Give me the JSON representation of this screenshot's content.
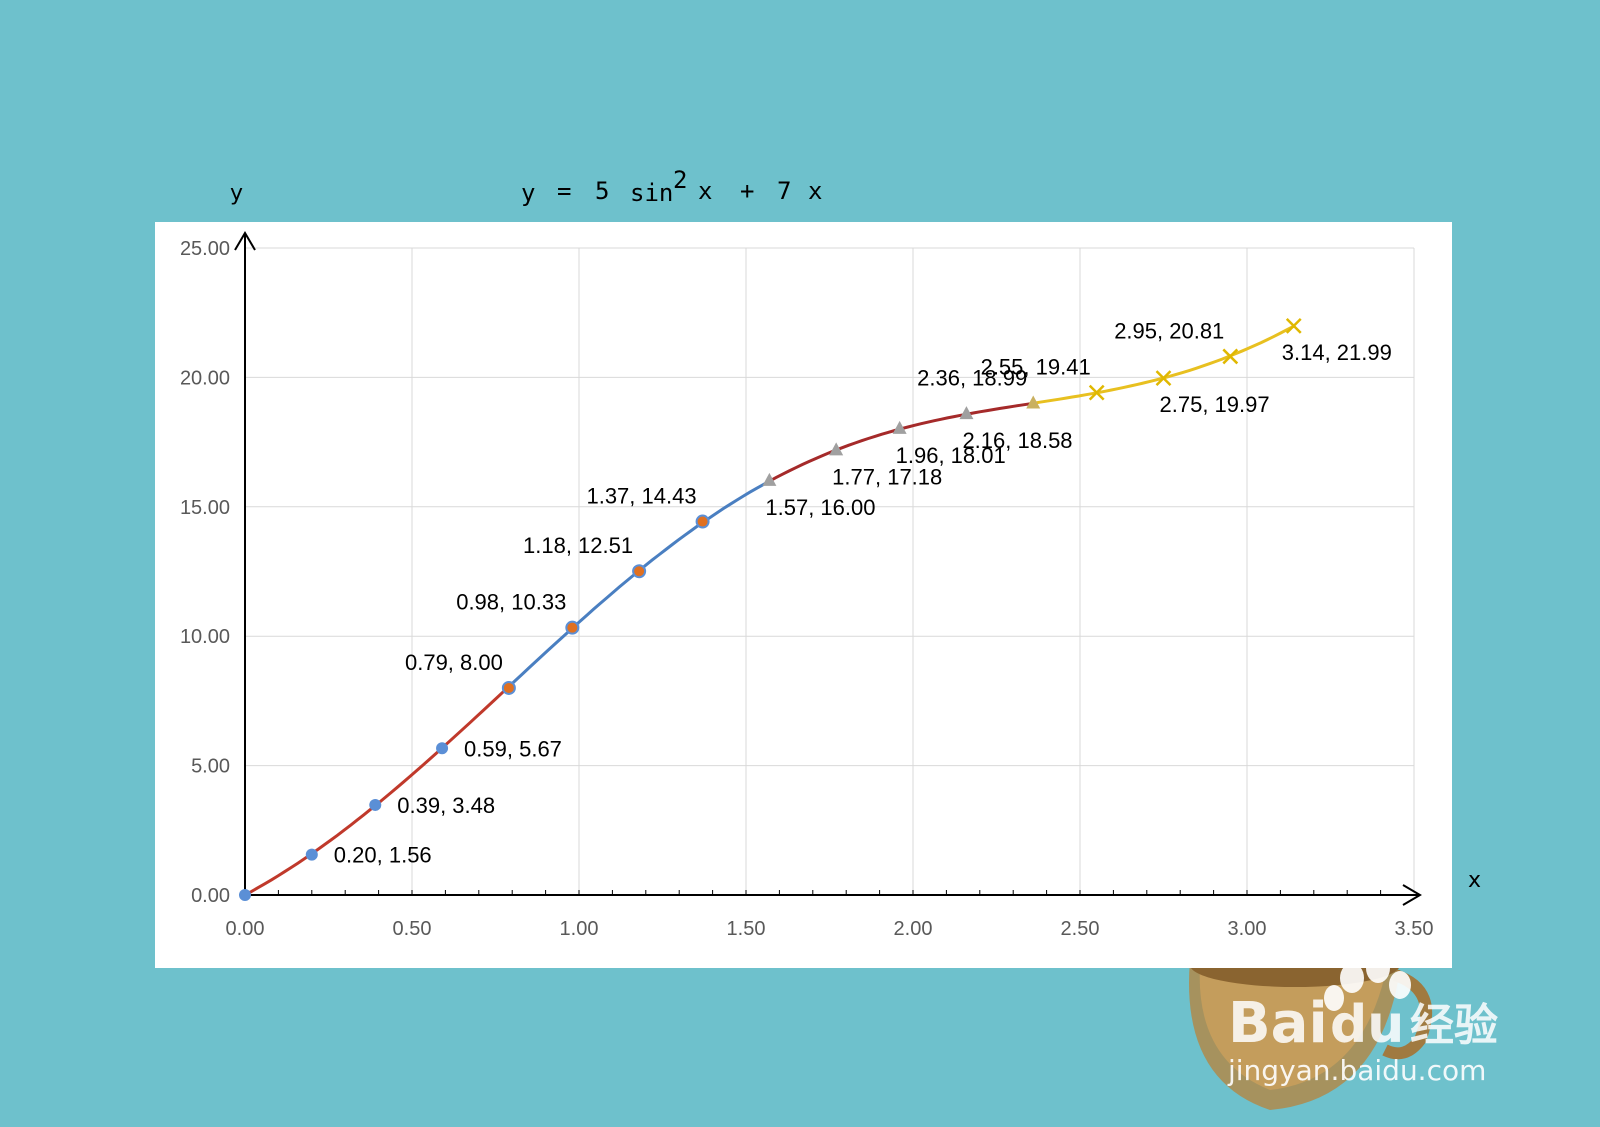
{
  "formula": {
    "y": "y",
    "eq": "=",
    "coef": "5",
    "fn": "sin",
    "exp": "2",
    "var1": "x",
    "plus": "+",
    "coef2": "7",
    "var2": "x"
  },
  "watermark": {
    "brand": "Bai",
    "brand_tail": "du",
    "cn": "经验",
    "url": "jingyan.baidu.com"
  },
  "colors": {
    "background": "#6ec1cc",
    "plot_bg": "#ffffff",
    "grid": "#d9d9d9",
    "series_red": "#c0392b",
    "series_blue": "#4a7fc1",
    "series_darkred": "#a52a2a",
    "series_yellow": "#e8c020",
    "marker_blue": "#5b8fd6",
    "marker_gray": "#a0a0a0"
  },
  "chart_data": {
    "type": "scatter",
    "title": "y = 5 sin² x + 7 x",
    "xlabel": "x",
    "ylabel": "y",
    "xlim": [
      0,
      3.5
    ],
    "ylim": [
      0,
      25
    ],
    "x_ticks": [
      "0.00",
      "0.50",
      "1.00",
      "1.50",
      "2.00",
      "2.50",
      "3.00",
      "3.50"
    ],
    "y_ticks": [
      "0.00",
      "5.00",
      "10.00",
      "15.00",
      "20.00",
      "25.00"
    ],
    "grid": true,
    "legend": "none",
    "segments": [
      {
        "color": "series_red",
        "x": [
          0.0,
          0.2,
          0.39,
          0.59,
          0.79
        ]
      },
      {
        "color": "series_blue",
        "x": [
          0.79,
          0.98,
          1.18,
          1.37,
          1.57
        ]
      },
      {
        "color": "series_darkred",
        "x": [
          1.57,
          1.77,
          1.96,
          2.16,
          2.36
        ]
      },
      {
        "color": "series_yellow",
        "x": [
          2.36,
          2.55,
          2.75,
          2.95,
          3.14
        ]
      }
    ],
    "points": [
      {
        "x": 0.0,
        "y": 0.0,
        "label": "",
        "marker": "circle",
        "pos": "none"
      },
      {
        "x": 0.2,
        "y": 1.56,
        "label": "0.20, 1.56",
        "marker": "circle",
        "pos": "right"
      },
      {
        "x": 0.39,
        "y": 3.48,
        "label": "0.39, 3.48",
        "marker": "circle",
        "pos": "right"
      },
      {
        "x": 0.59,
        "y": 5.67,
        "label": "0.59, 5.67",
        "marker": "circle",
        "pos": "right"
      },
      {
        "x": 0.79,
        "y": 8.0,
        "label": "0.79, 8.00",
        "marker": "circle-orange",
        "pos": "upper-left"
      },
      {
        "x": 0.98,
        "y": 10.33,
        "label": "0.98, 10.33",
        "marker": "circle-orange",
        "pos": "upper-left"
      },
      {
        "x": 1.18,
        "y": 12.51,
        "label": "1.18, 12.51",
        "marker": "circle-orange",
        "pos": "upper-left"
      },
      {
        "x": 1.37,
        "y": 14.43,
        "label": "1.37, 14.43",
        "marker": "circle-orange",
        "pos": "upper-left"
      },
      {
        "x": 1.57,
        "y": 16.0,
        "label": "1.57, 16.00",
        "marker": "triangle",
        "pos": "below"
      },
      {
        "x": 1.77,
        "y": 17.18,
        "label": "1.77, 17.18",
        "marker": "triangle",
        "pos": "below"
      },
      {
        "x": 1.96,
        "y": 18.01,
        "label": "1.96, 18.01",
        "marker": "triangle",
        "pos": "below"
      },
      {
        "x": 2.16,
        "y": 18.58,
        "label": "2.16, 18.58",
        "marker": "triangle",
        "pos": "below"
      },
      {
        "x": 2.36,
        "y": 18.99,
        "label": "2.36, 18.99",
        "marker": "triangle-yellow",
        "pos": "upper-left"
      },
      {
        "x": 2.55,
        "y": 19.41,
        "label": "2.55, 19.41",
        "marker": "x",
        "pos": "upper-left"
      },
      {
        "x": 2.75,
        "y": 19.97,
        "label": "2.75, 19.97",
        "marker": "x",
        "pos": "below"
      },
      {
        "x": 2.95,
        "y": 20.81,
        "label": "2.95, 20.81",
        "marker": "x",
        "pos": "upper-left"
      },
      {
        "x": 3.14,
        "y": 21.99,
        "label": "3.14, 21.99",
        "marker": "x",
        "pos": "lower-right"
      }
    ]
  }
}
